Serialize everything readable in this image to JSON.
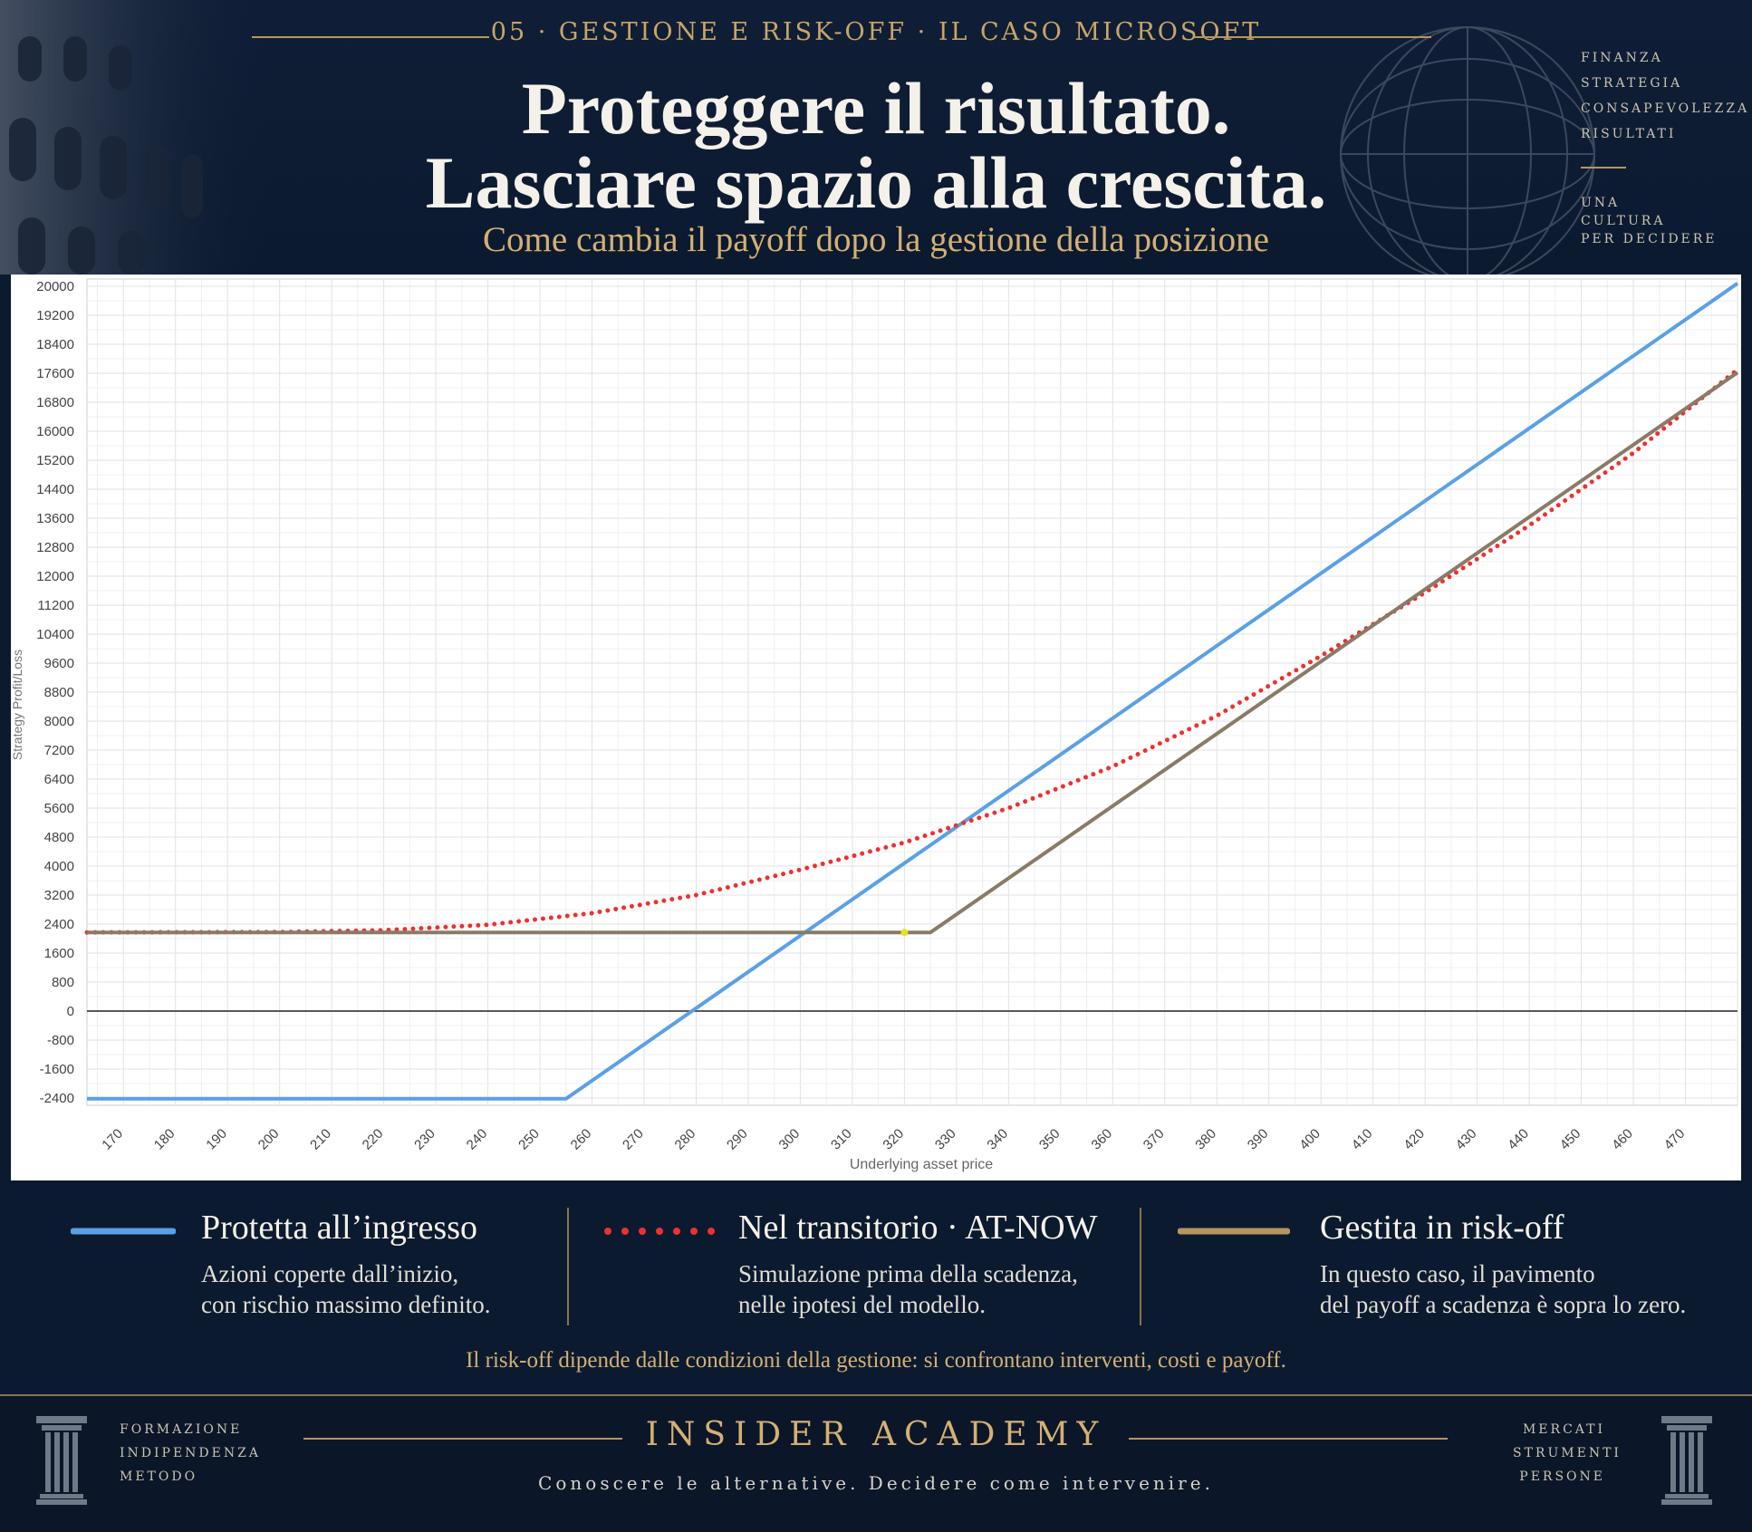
{
  "header": {
    "kicker": "05 · GESTIONE E RISK-OFF · IL CASO MICROSOFT",
    "title_line1": "Proteggere il risultato.",
    "title_line2": "Lasciare spazio alla crescita.",
    "subtitle": "Come cambia il payoff dopo la gestione della posizione",
    "side_words": [
      "FINANZA",
      "STRATEGIA",
      "CONSAPEVOLEZZA",
      "RISULTATI"
    ],
    "side_words_2": [
      "UNA",
      "CULTURA",
      "PER DECIDERE"
    ]
  },
  "chart_data": {
    "type": "line",
    "xlabel": "Underlying asset price",
    "ylabel": "Strategy Profit/Loss",
    "xlim": [
      163,
      480
    ],
    "ylim": [
      -2600,
      20200
    ],
    "x_ticks": [
      170,
      180,
      190,
      200,
      210,
      220,
      230,
      240,
      250,
      260,
      270,
      280,
      290,
      300,
      310,
      320,
      330,
      340,
      350,
      360,
      370,
      380,
      390,
      400,
      410,
      420,
      430,
      440,
      450,
      460,
      470
    ],
    "y_ticks": [
      20000,
      19200,
      18400,
      17600,
      16800,
      16000,
      15200,
      14400,
      13600,
      12800,
      12000,
      11200,
      10400,
      9600,
      8800,
      8000,
      7200,
      6400,
      5600,
      4800,
      4000,
      3200,
      2400,
      1600,
      800,
      0,
      -800,
      -1600,
      -2400
    ],
    "grid": true,
    "series": [
      {
        "name": "Protetta all’ingresso",
        "style": "solid",
        "color": "#5aa0e6",
        "x": [
          163,
          255,
          480
        ],
        "y": [
          -2420,
          -2420,
          20080
        ]
      },
      {
        "name": "Nel transitorio · AT-NOW",
        "style": "dotted",
        "color": "#ee3030",
        "x": [
          163,
          200,
          220,
          240,
          260,
          280,
          300,
          320,
          340,
          360,
          380,
          400,
          420,
          440,
          460,
          480
        ],
        "y": [
          2170,
          2180,
          2230,
          2380,
          2700,
          3200,
          3900,
          4650,
          5600,
          6750,
          8150,
          9800,
          11550,
          13400,
          15400,
          17700
        ]
      },
      {
        "name": "Gestita in risk-off",
        "style": "solid",
        "color": "#8a7a66",
        "x": [
          163,
          325,
          480
        ],
        "y": [
          2170,
          2170,
          17620
        ]
      }
    ],
    "marker": {
      "x": 320,
      "y": 2170,
      "color": "#e8e020"
    }
  },
  "legend": {
    "items": [
      {
        "title": "Protetta all’ingresso",
        "desc1": "Azioni coperte dall’inizio,",
        "desc2": "con rischio massimo definito.",
        "color": "#5aa0e6"
      },
      {
        "title": "Nel transitorio · AT-NOW",
        "desc1": "Simulazione prima della scadenza,",
        "desc2": "nelle ipotesi del modello.",
        "color": "#ee3030"
      },
      {
        "title": "Gestita in risk-off",
        "desc1": "In questo caso, il pavimento",
        "desc2": "del payoff a scadenza è sopra lo zero.",
        "color": "#b8955c"
      }
    ],
    "note": "Il risk-off dipende dalle condizioni della gestione: si confrontano interventi, costi e payoff."
  },
  "footer": {
    "left_words": [
      "FORMAZIONE",
      "INDIPENDENZA",
      "METODO"
    ],
    "right_words": [
      "MERCATI",
      "STRUMENTI",
      "PERSONE"
    ],
    "brand": "INSIDER ACADEMY",
    "tagline": "Conoscere le alternative. Decidere come intervenire."
  }
}
